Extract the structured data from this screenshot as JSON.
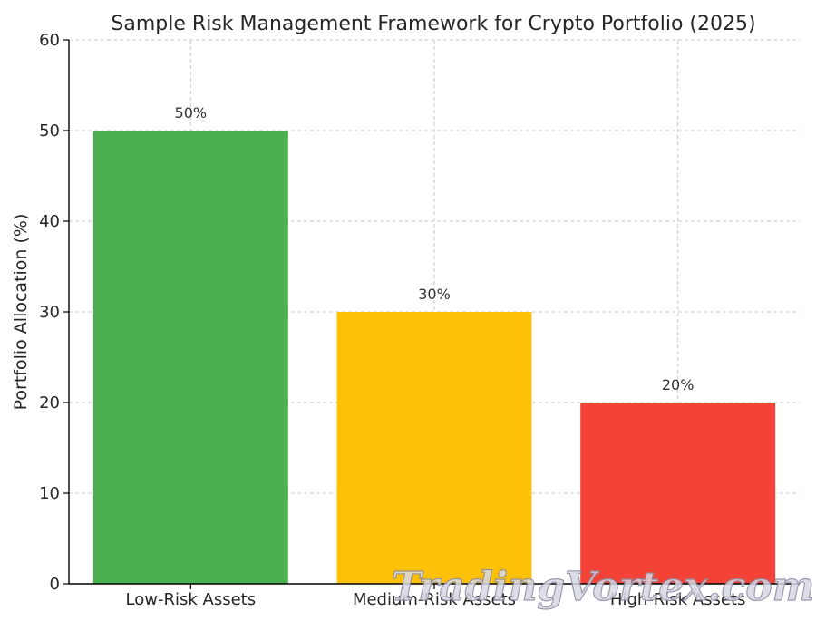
{
  "chart_data": {
    "type": "bar",
    "title": "Sample Risk Management Framework for Crypto Portfolio (2025)",
    "xlabel": "",
    "ylabel": "Portfolio Allocation (%)",
    "categories": [
      "Low-Risk Assets",
      "Medium-Risk Assets",
      "High-Risk Assets"
    ],
    "values": [
      50,
      30,
      20
    ],
    "data_labels": [
      "50%",
      "30%",
      "20%"
    ],
    "colors": [
      "#4caf50",
      "#ffc107",
      "#f44336"
    ],
    "ylim": [
      0,
      60
    ],
    "yticks": [
      0,
      10,
      20,
      30,
      40,
      50,
      60
    ],
    "grid": true,
    "legend": "none"
  },
  "watermark": "TradingVortex.com"
}
